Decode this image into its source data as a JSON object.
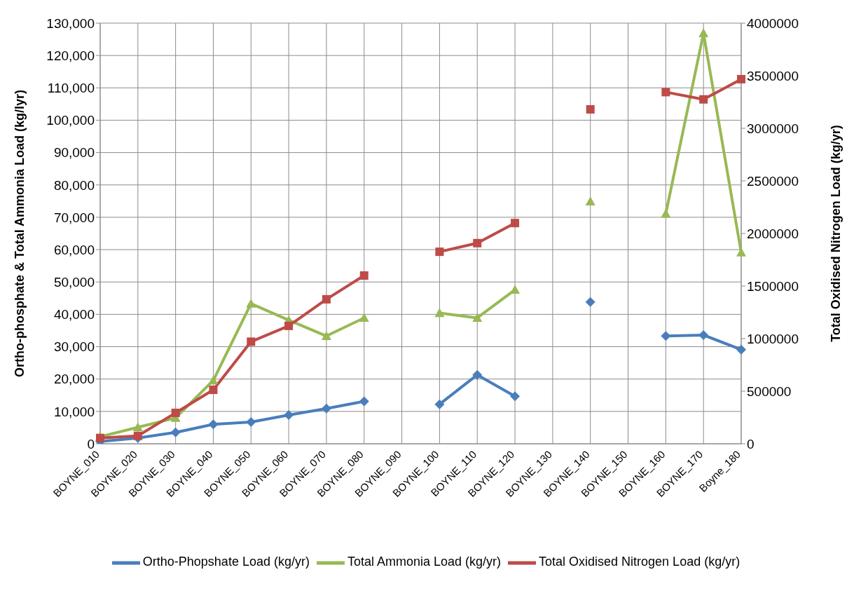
{
  "chart_data": {
    "type": "line",
    "ylabel": "Ortho-phosphate & Total Ammonia Load (kg/lyr)",
    "y2label": "Total Oxidised Nitrogen Load (kg/yr)",
    "categories": [
      "BOYNE_010",
      "BOYNE_020",
      "BOYNE_030",
      "BOYNE_040",
      "BOYNE_050",
      "BOYNE_060",
      "BOYNE_070",
      "BOYNE_080",
      "BOYNE_090",
      "BOYNE_100",
      "BOYNE_110",
      "BOYNE_120",
      "BOYNE_130",
      "BOYNE_140",
      "BOYNE_150",
      "BOYNE_160",
      "BOYNE_170",
      "Boyne_180"
    ],
    "series": [
      {
        "name": "Ortho-Phopshate Load (kg/yr)",
        "color": "#4a7ebb",
        "marker": "diamond",
        "values": [
          700,
          1800,
          3500,
          6000,
          6700,
          8900,
          10900,
          13100,
          null,
          12200,
          21300,
          14700,
          null,
          43800,
          null,
          33300,
          33600,
          29100
        ]
      },
      {
        "name": "Total Ammonia Load (kg/yr)",
        "color": "#98b954",
        "marker": "triangle",
        "values": [
          2200,
          5100,
          8000,
          19600,
          43300,
          38200,
          33300,
          38900,
          null,
          40400,
          38900,
          47600,
          null,
          74900,
          null,
          71100,
          126900,
          59100
        ]
      },
      {
        "name": "Total Oxidised Nitrogen Load (kg/yr)",
        "color": "#be4b48",
        "marker": "square",
        "axis": "y2",
        "values": [
          55000,
          75000,
          294000,
          513000,
          971000,
          1121000,
          1374000,
          1600000,
          null,
          1826000,
          1908000,
          2099000,
          null,
          3180000,
          null,
          3344000,
          3275000,
          3467000
        ]
      }
    ],
    "ylim": [
      0,
      130000
    ],
    "yticks": [
      0,
      {
        "value": 10000,
        "label": "10,000"
      },
      {
        "value": 20000,
        "label": "20,000"
      },
      {
        "value": 30000,
        "label": "30,000"
      },
      {
        "value": 40000,
        "label": "40,000"
      },
      {
        "value": 50000,
        "label": "50,000"
      },
      {
        "value": 60000,
        "label": "60,000"
      },
      {
        "value": 70000,
        "label": "70,000"
      },
      {
        "value": 80000,
        "label": "80,000"
      },
      {
        "value": 90000,
        "label": "90,000"
      },
      {
        "value": 100000,
        "label": "100,000"
      },
      {
        "value": 110000,
        "label": "110,000"
      },
      {
        "value": 120000,
        "label": "120,000"
      },
      {
        "value": 130000,
        "label": "130,000"
      }
    ],
    "y2lim": [
      0,
      4000000
    ],
    "y2ticks": [
      0,
      500000,
      1000000,
      1500000,
      2000000,
      2500000,
      3000000,
      3500000,
      4000000
    ],
    "grid": true,
    "legend": "bottom",
    "line_style": "solid"
  }
}
